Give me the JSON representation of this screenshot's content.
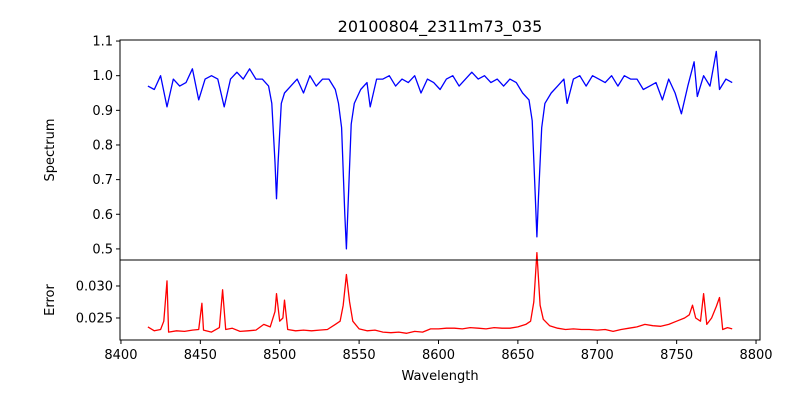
{
  "chart_data": [
    {
      "type": "line",
      "title": "20100804_2311m73_035",
      "xlabel": "",
      "ylabel": "Spectrum",
      "color": "#0000ff",
      "xlim": [
        8399.4,
        8802.5
      ],
      "ylim": [
        0.468,
        1.103
      ],
      "yticks": [
        "0.5",
        "0.6",
        "0.7",
        "0.8",
        "0.9",
        "1.0",
        "1.1"
      ],
      "x": [
        8417,
        8421,
        8425,
        8429,
        8433,
        8437,
        8441,
        8445,
        8449,
        8453,
        8457,
        8461,
        8465,
        8469,
        8473,
        8477,
        8481,
        8485,
        8489,
        8493,
        8495,
        8497,
        8498,
        8499,
        8501,
        8503,
        8507,
        8511,
        8515,
        8519,
        8523,
        8527,
        8531,
        8535,
        8537,
        8539,
        8541,
        8542,
        8543,
        8545,
        8547,
        8551,
        8555,
        8557,
        8561,
        8565,
        8569,
        8573,
        8577,
        8581,
        8585,
        8589,
        8593,
        8597,
        8601,
        8605,
        8609,
        8613,
        8617,
        8621,
        8625,
        8629,
        8633,
        8637,
        8641,
        8645,
        8649,
        8653,
        8657,
        8659,
        8661,
        8662,
        8663,
        8665,
        8667,
        8671,
        8675,
        8679,
        8681,
        8685,
        8689,
        8693,
        8697,
        8701,
        8705,
        8709,
        8713,
        8717,
        8721,
        8725,
        8729,
        8733,
        8737,
        8741,
        8745,
        8749,
        8753,
        8757,
        8761,
        8763,
        8767,
        8771,
        8775,
        8777,
        8781,
        8785
      ],
      "y": [
        0.97,
        0.96,
        1.0,
        0.91,
        0.99,
        0.97,
        0.98,
        1.02,
        0.93,
        0.99,
        1.0,
        0.99,
        0.91,
        0.99,
        1.01,
        0.99,
        1.02,
        0.99,
        0.99,
        0.97,
        0.92,
        0.75,
        0.645,
        0.75,
        0.92,
        0.95,
        0.97,
        0.99,
        0.95,
        1.0,
        0.97,
        0.99,
        0.99,
        0.96,
        0.92,
        0.85,
        0.6,
        0.5,
        0.62,
        0.86,
        0.92,
        0.96,
        0.98,
        0.91,
        0.99,
        0.99,
        1.0,
        0.97,
        0.99,
        0.98,
        1.0,
        0.95,
        0.99,
        0.98,
        0.96,
        0.99,
        1.0,
        0.97,
        0.99,
        1.01,
        0.99,
        1.0,
        0.98,
        0.99,
        0.97,
        0.99,
        0.98,
        0.95,
        0.93,
        0.87,
        0.65,
        0.535,
        0.65,
        0.85,
        0.92,
        0.95,
        0.97,
        0.99,
        0.92,
        0.99,
        1.0,
        0.97,
        1.0,
        0.99,
        0.98,
        1.0,
        0.97,
        1.0,
        0.99,
        0.99,
        0.96,
        0.97,
        0.98,
        0.93,
        0.99,
        0.95,
        0.89,
        0.97,
        1.04,
        0.94,
        1.0,
        0.97,
        1.07,
        0.96,
        0.99,
        0.98
      ]
    },
    {
      "type": "line",
      "xlabel": "Wavelength",
      "ylabel": "Error",
      "color": "#ff0000",
      "xlim": [
        8399.4,
        8802.5
      ],
      "ylim": [
        0.02156,
        0.03406
      ],
      "yticks": [
        "0.025",
        "0.030"
      ],
      "xticks": [
        "8400",
        "8450",
        "8500",
        "8550",
        "8600",
        "8650",
        "8700",
        "8750",
        "8800"
      ],
      "x": [
        8417,
        8421,
        8425,
        8427,
        8429,
        8430,
        8435,
        8440,
        8445,
        8449,
        8451,
        8452,
        8457,
        8462,
        8464,
        8466,
        8470,
        8475,
        8480,
        8485,
        8490,
        8494,
        8497,
        8498,
        8500,
        8502,
        8503,
        8505,
        8510,
        8515,
        8520,
        8525,
        8530,
        8535,
        8538,
        8540,
        8542,
        8544,
        8546,
        8550,
        8555,
        8560,
        8565,
        8570,
        8575,
        8580,
        8585,
        8590,
        8595,
        8600,
        8605,
        8610,
        8615,
        8620,
        8625,
        8630,
        8635,
        8640,
        8645,
        8650,
        8655,
        8658,
        8660,
        8662,
        8664,
        8666,
        8670,
        8675,
        8680,
        8685,
        8690,
        8695,
        8700,
        8705,
        8710,
        8715,
        8720,
        8725,
        8730,
        8735,
        8740,
        8745,
        8750,
        8755,
        8758,
        8760,
        8762,
        8765,
        8767,
        8769,
        8772,
        8775,
        8777,
        8779,
        8782,
        8785
      ],
      "y": [
        0.0236,
        0.023,
        0.0232,
        0.0245,
        0.0308,
        0.0228,
        0.023,
        0.0229,
        0.0231,
        0.0232,
        0.0273,
        0.0231,
        0.0228,
        0.0235,
        0.0294,
        0.0232,
        0.0234,
        0.0229,
        0.023,
        0.0231,
        0.024,
        0.0236,
        0.026,
        0.0288,
        0.0245,
        0.025,
        0.0278,
        0.0232,
        0.023,
        0.0231,
        0.023,
        0.0231,
        0.0232,
        0.024,
        0.0245,
        0.027,
        0.0318,
        0.0275,
        0.0245,
        0.0233,
        0.023,
        0.0231,
        0.0228,
        0.0227,
        0.0228,
        0.0226,
        0.0229,
        0.0228,
        0.0233,
        0.0233,
        0.0234,
        0.0234,
        0.0233,
        0.0235,
        0.0234,
        0.0233,
        0.0235,
        0.0234,
        0.0234,
        0.0236,
        0.024,
        0.0245,
        0.0275,
        0.0352,
        0.027,
        0.0248,
        0.0238,
        0.0234,
        0.0232,
        0.0233,
        0.0232,
        0.0232,
        0.0231,
        0.0232,
        0.0229,
        0.0232,
        0.0234,
        0.0236,
        0.024,
        0.0238,
        0.0237,
        0.024,
        0.0245,
        0.025,
        0.0255,
        0.027,
        0.025,
        0.0245,
        0.0288,
        0.024,
        0.025,
        0.0268,
        0.0282,
        0.0232,
        0.0235,
        0.0233
      ]
    }
  ]
}
